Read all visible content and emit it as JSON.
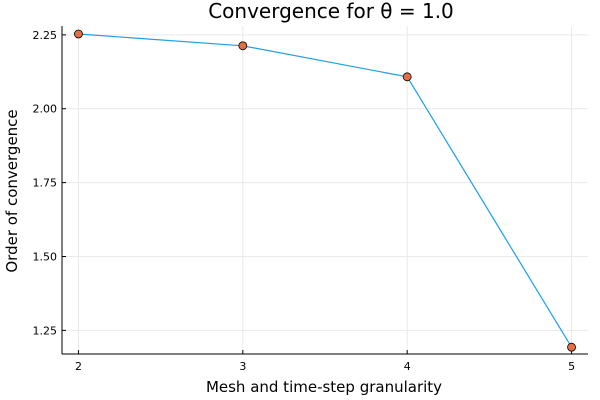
{
  "chart_data": {
    "type": "line",
    "title": "Convergence for θ = 1.0",
    "xlabel": "Mesh and time-step granularity",
    "ylabel": "Order of convergence",
    "x": [
      2,
      3,
      4,
      5
    ],
    "series": [
      {
        "values": [
          2.253,
          2.213,
          2.108,
          1.193
        ]
      }
    ],
    "xlim": [
      1.9,
      5.1
    ],
    "ylim": [
      1.17,
      2.28
    ],
    "x_ticks": [
      2,
      3,
      4,
      5
    ],
    "x_tick_labels": [
      "2",
      "3",
      "4",
      "5"
    ],
    "y_ticks": [
      1.25,
      1.5,
      1.75,
      2.0,
      2.25
    ],
    "y_tick_labels": [
      "1.25",
      "1.50",
      "1.75",
      "2.00",
      "2.25"
    ],
    "grid": true,
    "legend": "none",
    "colors": {
      "line": "#1f9ee8",
      "marker_fill": "#e26f46",
      "marker_edge": "#000000"
    }
  }
}
